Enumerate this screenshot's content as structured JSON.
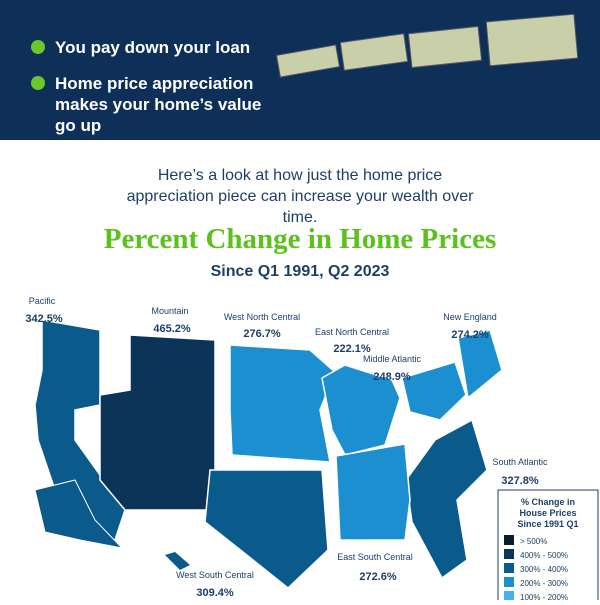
{
  "banner": {
    "bullets": [
      "You pay down your loan",
      "Home price appreciation makes your home’s value go up"
    ]
  },
  "intro": "Here’s a look at how just the home price appreciation piece can increase your wealth over time.",
  "title": "Percent Change in Home Prices",
  "subtitle": "Since Q1 1991, Q2 2023",
  "regions": [
    {
      "name": "Pacific",
      "value": "342.5%",
      "color": "#0b5a8c"
    },
    {
      "name": "Mountain",
      "value": "465.2%",
      "color": "#0c3358"
    },
    {
      "name": "West North Central",
      "value": "276.7%",
      "color": "#1b8fd0"
    },
    {
      "name": "East North Central",
      "value": "222.1%",
      "color": "#1b8fd0"
    },
    {
      "name": "Middle Atlantic",
      "value": "248.9%",
      "color": "#1b8fd0"
    },
    {
      "name": "New England",
      "value": "274.2%",
      "color": "#1b8fd0"
    },
    {
      "name": "South Atlantic",
      "value": "327.8%",
      "color": "#0b5a8c"
    },
    {
      "name": "East South Central",
      "value": "272.6%",
      "color": "#1b8fd0"
    },
    {
      "name": "West South Central",
      "value": "309.4%",
      "color": "#0b5a8c"
    }
  ],
  "legend": {
    "title": "% Change in House Prices Since 1991 Q1",
    "items": [
      {
        "label": "> 500%",
        "color": "#071c30"
      },
      {
        "label": "400% - 500%",
        "color": "#0c3358"
      },
      {
        "label": "300% - 400%",
        "color": "#0b5a8c"
      },
      {
        "label": "200% - 300%",
        "color": "#1b8fd0"
      },
      {
        "label": "100% - 200%",
        "color": "#45b2ea"
      }
    ]
  }
}
